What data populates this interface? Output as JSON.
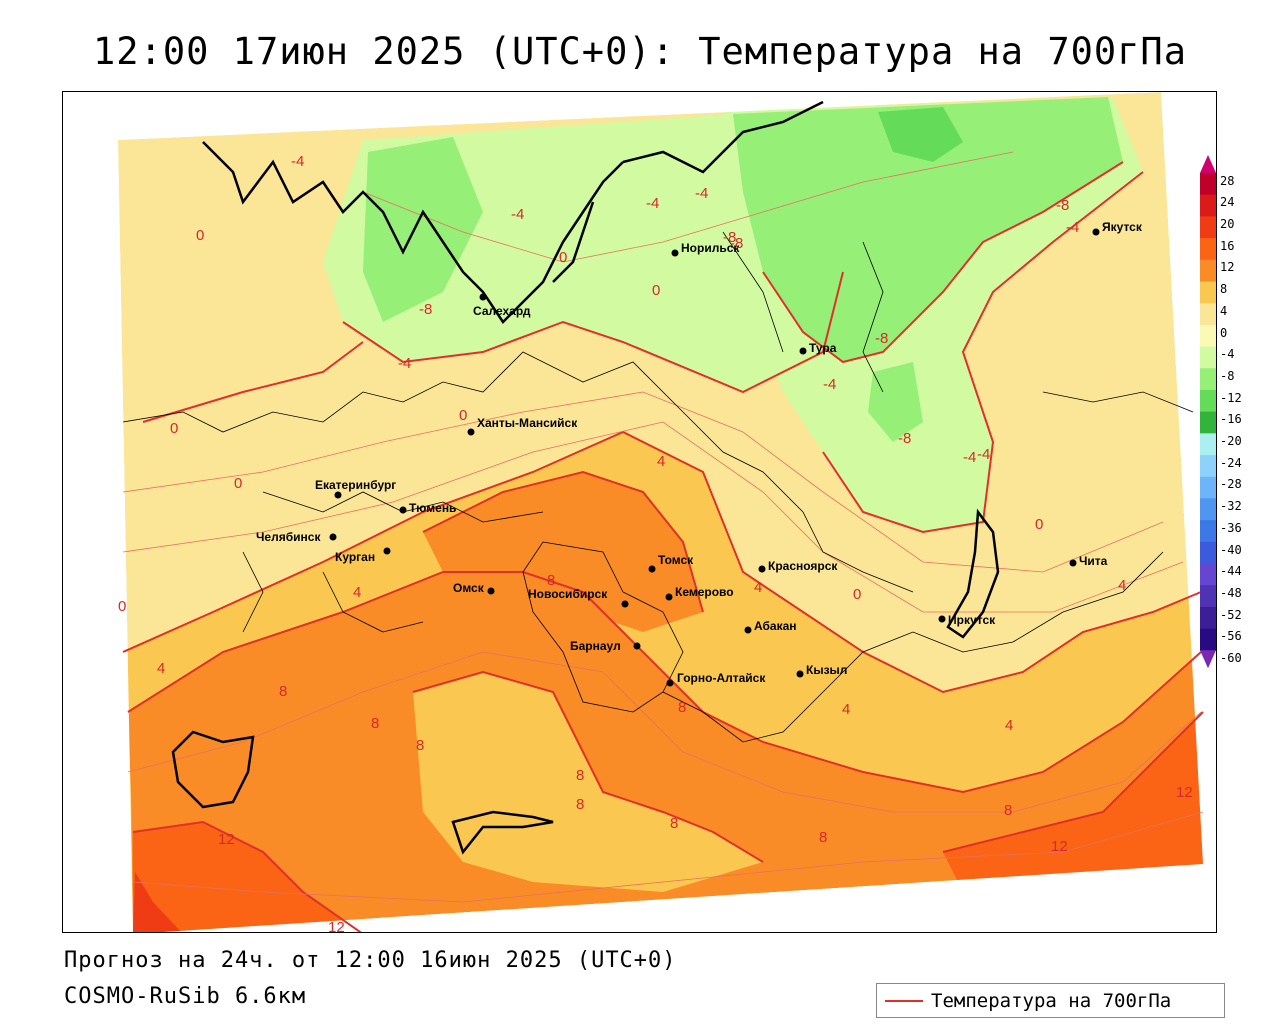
{
  "title": "12:00 17июн 2025 (UTC+0): Температура на 700гПа",
  "forecast": "Прогноз на 24ч. от 12:00 16июн 2025 (UTC+0)",
  "model": "COSMO-RuSib 6.6км",
  "legend": {
    "label": "Температура на 700гПа",
    "line_color": "#e0302a"
  },
  "colorbar": {
    "ticks": [
      "28",
      "24",
      "20",
      "16",
      "12",
      "8",
      "4",
      "0",
      "-4",
      "-8",
      "-12",
      "-16",
      "-20",
      "-24",
      "-28",
      "-32",
      "-36",
      "-40",
      "-44",
      "-48",
      "-52",
      "-56",
      "-60"
    ],
    "colors": [
      "#d2006e",
      "#c0002a",
      "#dc1a1a",
      "#f03c14",
      "#fa6414",
      "#fa8c28",
      "#fac850",
      "#fae696",
      "#fafab4",
      "#d2faa0",
      "#96f078",
      "#64dc5a",
      "#32b43c",
      "#aaf0f0",
      "#8cd2fa",
      "#6eb4fa",
      "#5096f0",
      "#3c78e6",
      "#3c5adc",
      "#6446d2",
      "#5032b4",
      "#3c1e96",
      "#280a82",
      "#7828b4"
    ]
  },
  "cities": [
    {
      "name": "Норильск"
    },
    {
      "name": "Якутск"
    },
    {
      "name": "Салехард"
    },
    {
      "name": "Тура"
    },
    {
      "name": "Ханты-Мансийск"
    },
    {
      "name": "Екатеринбург"
    },
    {
      "name": "Тюмень"
    },
    {
      "name": "Челябинск"
    },
    {
      "name": "Курган"
    },
    {
      "name": "Омск"
    },
    {
      "name": "Новосибирск"
    },
    {
      "name": "Томск"
    },
    {
      "name": "Кемерово"
    },
    {
      "name": "Барнаул"
    },
    {
      "name": "Горно-Алтайск"
    },
    {
      "name": "Красноярск"
    },
    {
      "name": "Абакан"
    },
    {
      "name": "Кызыл"
    },
    {
      "name": "Иркутск"
    },
    {
      "name": "Чита"
    }
  ],
  "isotherm_labels": [
    "-4",
    "-4",
    "-4",
    "-8",
    "-8",
    "-8",
    "-4",
    "-4",
    "-8",
    "-4",
    "-4",
    "-8",
    "-4",
    "-8",
    "-4",
    "0",
    "0",
    "0",
    "0",
    "0",
    "0",
    "0",
    "0",
    "0",
    "4",
    "4",
    "4",
    "4",
    "4",
    "4",
    "4",
    "8",
    "8",
    "8",
    "8",
    "8",
    "8",
    "8",
    "8",
    "8",
    "8",
    "12",
    "12",
    "12",
    "12"
  ]
}
